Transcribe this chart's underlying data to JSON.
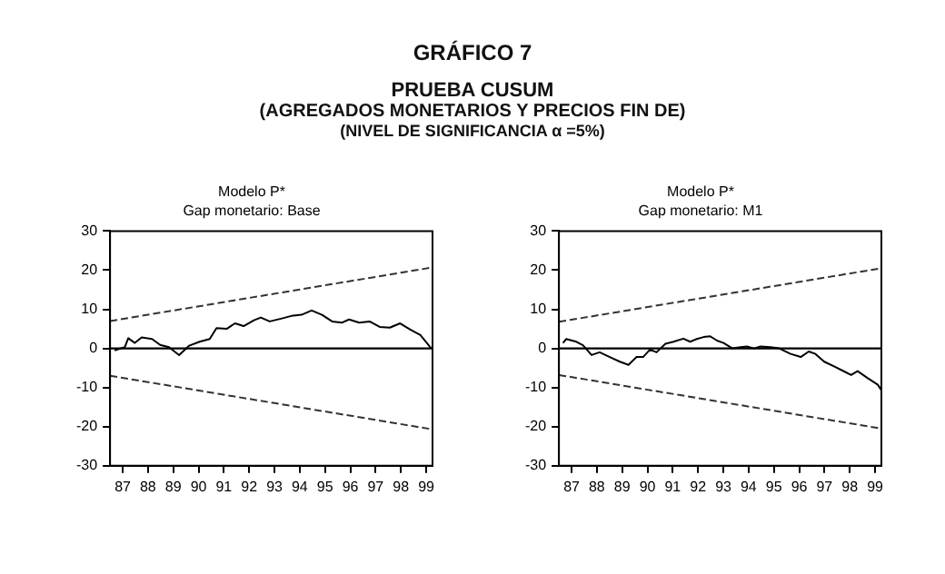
{
  "chart_data": [
    {
      "type": "other",
      "title": "GRÁFICO 7",
      "annotations": [
        "PRUEBA CUSUM",
        "(AGREGADOS MONETARIOS Y PRECIOS FIN DE)",
        "(NIVEL DE SIGNIFICANCIA α =5%)"
      ]
    },
    {
      "type": "line",
      "title": "Modelo P*",
      "subtitle": "Gap monetario: Base",
      "xlim": [
        1986.5,
        1999.25
      ],
      "xticks": [
        {
          "value": 1987,
          "label": "87"
        },
        {
          "value": 1988,
          "label": "88"
        },
        {
          "value": 1989,
          "label": "89"
        },
        {
          "value": 1990,
          "label": "90"
        },
        {
          "value": 1991,
          "label": "91"
        },
        {
          "value": 1992,
          "label": "92"
        },
        {
          "value": 1993,
          "label": "93"
        },
        {
          "value": 1994,
          "label": "94"
        },
        {
          "value": 1995,
          "label": "95"
        },
        {
          "value": 1996,
          "label": "96"
        },
        {
          "value": 1997,
          "label": "97"
        },
        {
          "value": 1998,
          "label": "98"
        },
        {
          "value": 1999,
          "label": "99"
        }
      ],
      "ylim": [
        -30,
        30
      ],
      "yticks": [
        -30,
        -20,
        -10,
        0,
        10,
        20,
        30
      ],
      "grid": false,
      "legend": false,
      "ref_lines": [
        {
          "axis": "y",
          "value": 0,
          "color": "#000000"
        }
      ],
      "series": [
        {
          "color": "#000000",
          "line_style": "solid",
          "x": [
            1986.68,
            1987.08,
            1987.22,
            1987.48,
            1987.75,
            1988.16,
            1988.48,
            1988.83,
            1989.23,
            1989.63,
            1990.04,
            1990.44,
            1990.71,
            1991.11,
            1991.44,
            1991.78,
            1992.19,
            1992.46,
            1992.81,
            1993.26,
            1993.67,
            1994.07,
            1994.47,
            1994.88,
            1995.28,
            1995.68,
            1995.95,
            1996.35,
            1996.76,
            1997.16,
            1997.56,
            1997.97,
            1998.37,
            1998.77,
            1999.2
          ],
          "values": [
            -0.5,
            0.3,
            2.6,
            1.4,
            2.8,
            2.4,
            0.9,
            0.3,
            -1.7,
            0.7,
            1.7,
            2.4,
            5.2,
            5.0,
            6.4,
            5.7,
            7.2,
            7.9,
            6.9,
            7.6,
            8.3,
            8.6,
            9.7,
            8.6,
            6.9,
            6.6,
            7.4,
            6.6,
            6.9,
            5.5,
            5.3,
            6.4,
            4.8,
            3.4,
            0
          ]
        },
        {
          "color": "#333333",
          "line_style": "dashed",
          "x": [
            1986.5,
            1999.25
          ],
          "values": [
            7,
            20.7
          ]
        },
        {
          "color": "#333333",
          "line_style": "dashed",
          "x": [
            1986.5,
            1999.25
          ],
          "values": [
            -7,
            -20.7
          ]
        }
      ]
    },
    {
      "type": "line",
      "title": "Modelo P*",
      "subtitle": "Gap monetario: M1",
      "xlim": [
        1986.5,
        1999.25
      ],
      "xticks": [
        {
          "value": 1987,
          "label": "87"
        },
        {
          "value": 1988,
          "label": "88"
        },
        {
          "value": 1989,
          "label": "89"
        },
        {
          "value": 1990,
          "label": "90"
        },
        {
          "value": 1991,
          "label": "91"
        },
        {
          "value": 1992,
          "label": "92"
        },
        {
          "value": 1993,
          "label": "93"
        },
        {
          "value": 1994,
          "label": "94"
        },
        {
          "value": 1995,
          "label": "95"
        },
        {
          "value": 1996,
          "label": "96"
        },
        {
          "value": 1997,
          "label": "97"
        },
        {
          "value": 1998,
          "label": "98"
        },
        {
          "value": 1999,
          "label": "99"
        }
      ],
      "ylim": [
        -30,
        30
      ],
      "yticks": [
        -30,
        -20,
        -10,
        0,
        10,
        20,
        30
      ],
      "grid": false,
      "legend": false,
      "ref_lines": [
        {
          "axis": "y",
          "value": 0,
          "color": "#000000"
        }
      ],
      "series": [
        {
          "color": "#000000",
          "line_style": "solid",
          "x": [
            1986.66,
            1986.79,
            1987.19,
            1987.45,
            1987.79,
            1988.11,
            1988.51,
            1988.91,
            1989.25,
            1989.57,
            1989.83,
            1990.1,
            1990.36,
            1990.71,
            1991.03,
            1991.42,
            1991.69,
            1991.95,
            1992.22,
            1992.48,
            1992.75,
            1993.01,
            1993.36,
            1993.68,
            1993.94,
            1994.21,
            1994.47,
            1994.87,
            1995.21,
            1995.66,
            1996.06,
            1996.38,
            1996.64,
            1996.99,
            1997.38,
            1997.78,
            1998.05,
            1998.31,
            1998.71,
            1999.11,
            1999.25
          ],
          "values": [
            1.4,
            2.4,
            1.7,
            0.8,
            -1.7,
            -1.0,
            -2.2,
            -3.4,
            -4.2,
            -2.2,
            -2.2,
            -0.3,
            -1.0,
            1.2,
            1.7,
            2.5,
            1.7,
            2.4,
            2.9,
            3.1,
            2.0,
            1.4,
            0,
            0.3,
            0.5,
            0,
            0.5,
            0.3,
            0,
            -1.4,
            -2.2,
            -0.8,
            -1.4,
            -3.4,
            -4.6,
            -5.9,
            -6.8,
            -5.8,
            -7.6,
            -9.3,
            -10.7
          ]
        },
        {
          "color": "#333333",
          "line_style": "dashed",
          "x": [
            1986.5,
            1999.25
          ],
          "values": [
            6.8,
            20.5
          ]
        },
        {
          "color": "#333333",
          "line_style": "dashed",
          "x": [
            1986.5,
            1999.25
          ],
          "values": [
            -6.8,
            -20.5
          ]
        }
      ]
    }
  ]
}
